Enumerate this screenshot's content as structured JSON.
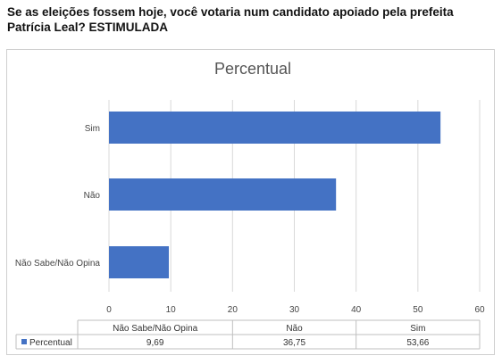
{
  "question": "Se as eleições fossem hoje, você votaria num candidato apoiado pela prefeita Patrícia Leal? ESTIMULADA",
  "chart_data": {
    "type": "bar",
    "orientation": "horizontal",
    "title": "Percentual",
    "categories": [
      "Sim",
      "Não",
      "Não Sabe/Não Opina"
    ],
    "series": [
      {
        "name": "Percentual",
        "values": [
          53.66,
          36.75,
          9.69
        ],
        "color": "#4472c4"
      }
    ],
    "xlim": [
      0,
      60
    ],
    "xticks": [
      0,
      10,
      20,
      30,
      40,
      50,
      60
    ],
    "grid": true,
    "data_table": {
      "columns": [
        "Não Sabe/Não Opina",
        "Não",
        "Sim"
      ],
      "row_label": "Percentual",
      "values": [
        "9,69",
        "36,75",
        "53,66"
      ]
    }
  }
}
